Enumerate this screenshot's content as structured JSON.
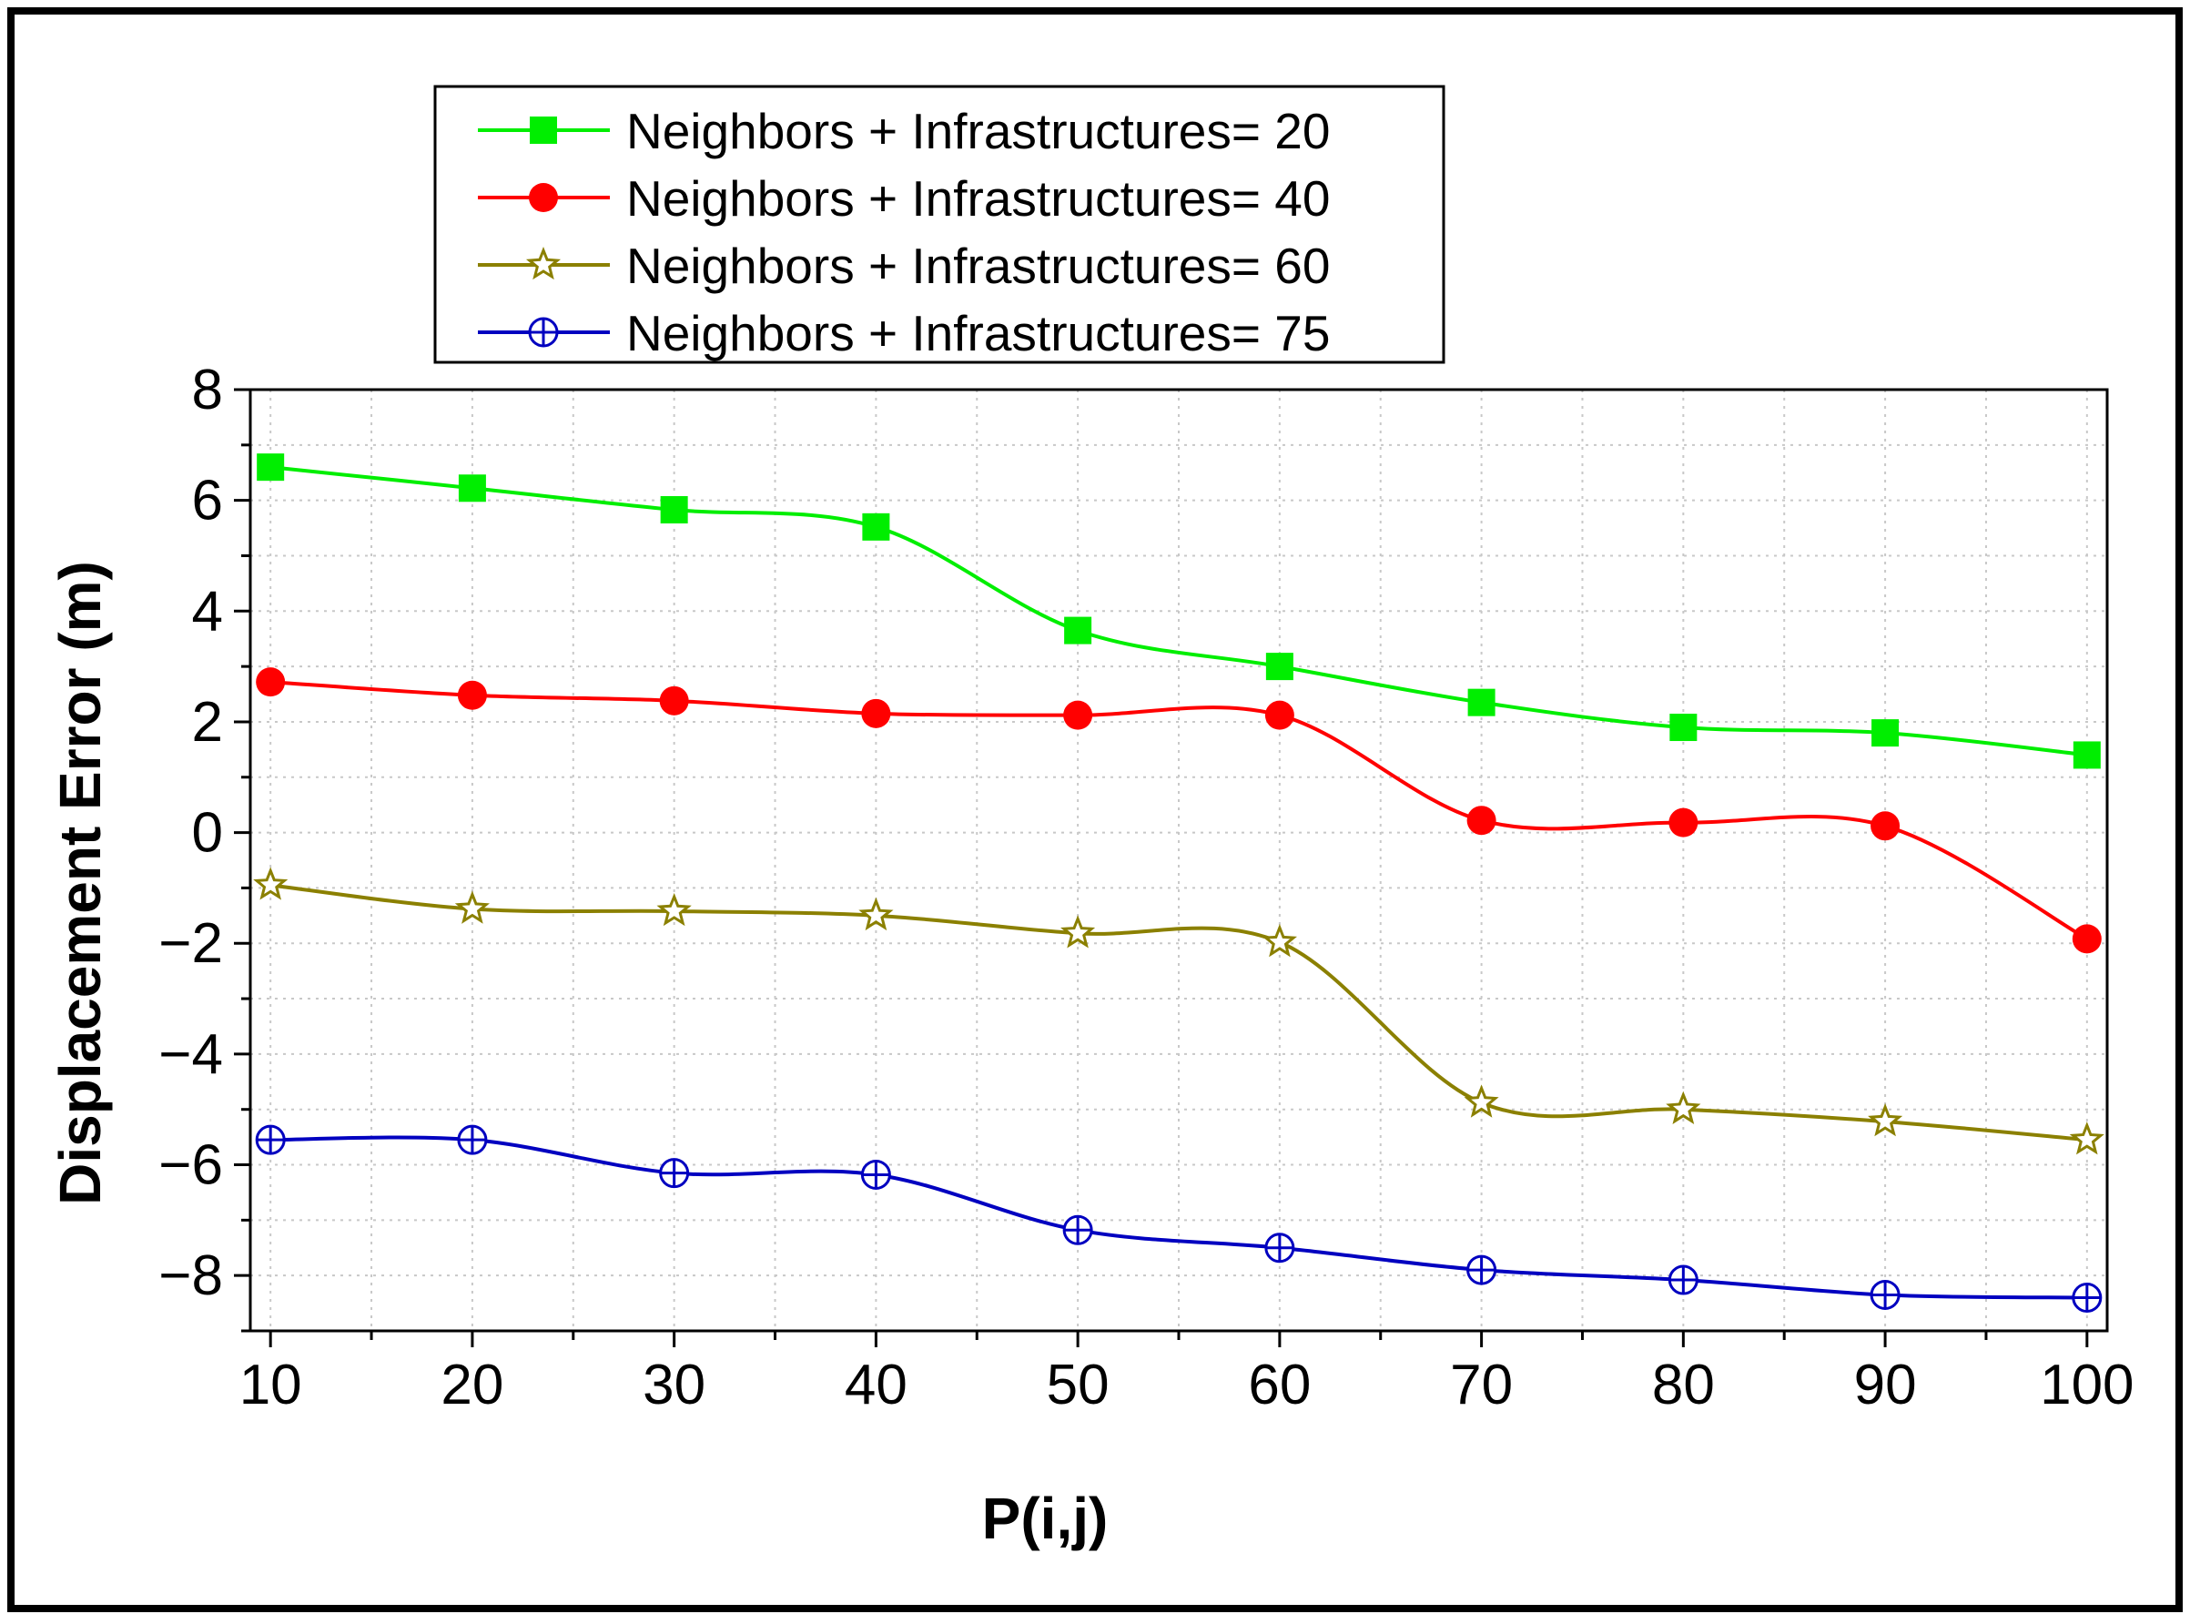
{
  "chart_data": {
    "type": "line",
    "title": "",
    "xlabel": "P(i,j)",
    "ylabel": "Displacement Error (m)",
    "x": [
      10,
      20,
      30,
      40,
      50,
      60,
      70,
      80,
      90,
      100
    ],
    "xlim": [
      9,
      101
    ],
    "ylim": [
      -9,
      8
    ],
    "x_ticks": [
      10,
      20,
      30,
      40,
      50,
      60,
      70,
      80,
      90,
      100
    ],
    "y_ticks": [
      8,
      6,
      4,
      2,
      0,
      -2,
      -4,
      -6,
      -8
    ],
    "y_tick_labels": [
      "8",
      "6",
      "4",
      "2",
      "0",
      "−2",
      "−4",
      "−6",
      "−8"
    ],
    "grid": true,
    "legend_position": "top-left",
    "series": [
      {
        "name": "Neighbors + Infrastructures= 20",
        "color": "#00ee00",
        "marker": "square",
        "values": [
          6.6,
          6.22,
          5.83,
          5.52,
          3.65,
          3.0,
          2.35,
          1.9,
          1.8,
          1.4
        ]
      },
      {
        "name": "Neighbors + Infrastructures= 40",
        "color": "#ff0000",
        "marker": "circle",
        "values": [
          2.72,
          2.48,
          2.38,
          2.15,
          2.12,
          2.12,
          0.22,
          0.18,
          0.12,
          -1.92
        ]
      },
      {
        "name": "Neighbors + Infrastructures= 60",
        "color": "#8b8000",
        "marker": "star",
        "values": [
          -0.95,
          -1.38,
          -1.42,
          -1.5,
          -1.82,
          -1.98,
          -4.88,
          -5.0,
          -5.22,
          -5.55
        ]
      },
      {
        "name": "Neighbors + Infrastructures= 75",
        "color": "#0000c0",
        "marker": "circle-cross",
        "values": [
          -5.55,
          -5.55,
          -6.15,
          -6.18,
          -7.18,
          -7.5,
          -7.9,
          -8.08,
          -8.35,
          -8.4
        ]
      }
    ]
  }
}
